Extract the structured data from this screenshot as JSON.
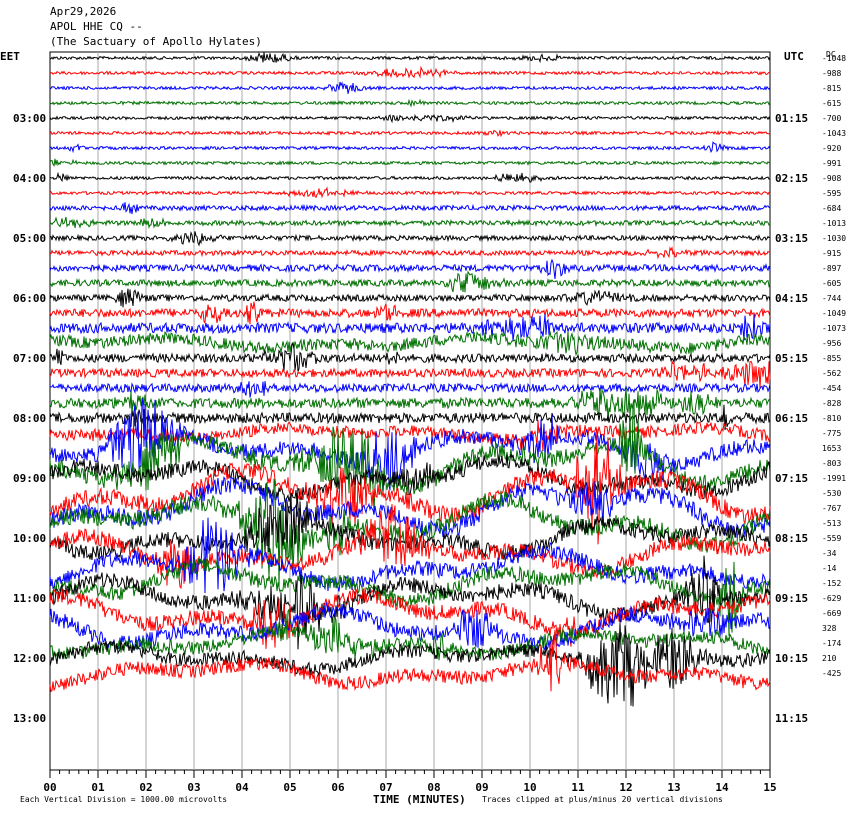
{
  "header": {
    "date": "Apr29,2026",
    "station": "APOL HHE CQ --",
    "site": "(The Sactuary of Apollo Hylates)"
  },
  "left_timezone": "EET",
  "right_timezone": "UTC",
  "offset_header": "DC",
  "footer": {
    "scale_note": "Each Vertical Division = 1000.00 microvolts",
    "xlabel": "TIME (MINUTES)",
    "clip_note": "Traces clipped at plus/minus 20 vertical divisions"
  },
  "colors": {
    "trace_cycle": [
      "#000000",
      "#ff0000",
      "#0000ff",
      "#007000"
    ],
    "grid": "#aaaaaa"
  },
  "chart_data": {
    "type": "line",
    "title": "APOL HHE CQ --",
    "xlabel": "TIME (MINUTES)",
    "xlim": [
      0,
      15
    ],
    "x_ticks": [
      "00",
      "01",
      "02",
      "03",
      "04",
      "05",
      "06",
      "07",
      "08",
      "09",
      "10",
      "11",
      "12",
      "13",
      "14",
      "15"
    ],
    "left_time_labels": [
      "03:00",
      "04:00",
      "05:00",
      "06:00",
      "07:00",
      "08:00",
      "09:00",
      "10:00",
      "11:00",
      "12:00",
      "13:00"
    ],
    "right_time_labels": [
      "01:15",
      "02:15",
      "03:15",
      "04:15",
      "05:15",
      "06:15",
      "07:15",
      "08:15",
      "09:15",
      "10:15",
      "11:15"
    ],
    "trace_count": 42,
    "traces_per_hour": 4,
    "dc_offsets": [
      "-1048",
      "-988",
      "-815",
      "-615",
      "-700",
      "-1043",
      "-920",
      "-991",
      "-908",
      "-595",
      "-684",
      "-1013",
      "-1030",
      "-915",
      "-897",
      "-605",
      "-744",
      "-1049",
      "-1073",
      "-956",
      "-855",
      "-562",
      "-454",
      "-828",
      "-810",
      "-775",
      "1653",
      "-803",
      "-1991",
      "-530",
      "-767",
      "-513",
      "-559",
      "-34",
      "-14",
      "-152",
      "-629",
      "-669",
      "328",
      "-174",
      "210",
      "-425"
    ],
    "activity_level": [
      1,
      1,
      1,
      1,
      1,
      1,
      1,
      1,
      1,
      1,
      2,
      2,
      2,
      2,
      3,
      3,
      3,
      4,
      5,
      6,
      4,
      4,
      4,
      5,
      5,
      6,
      8,
      9,
      8,
      9,
      9,
      9,
      8,
      8,
      8,
      8,
      8,
      8,
      8,
      7,
      7,
      7
    ]
  }
}
